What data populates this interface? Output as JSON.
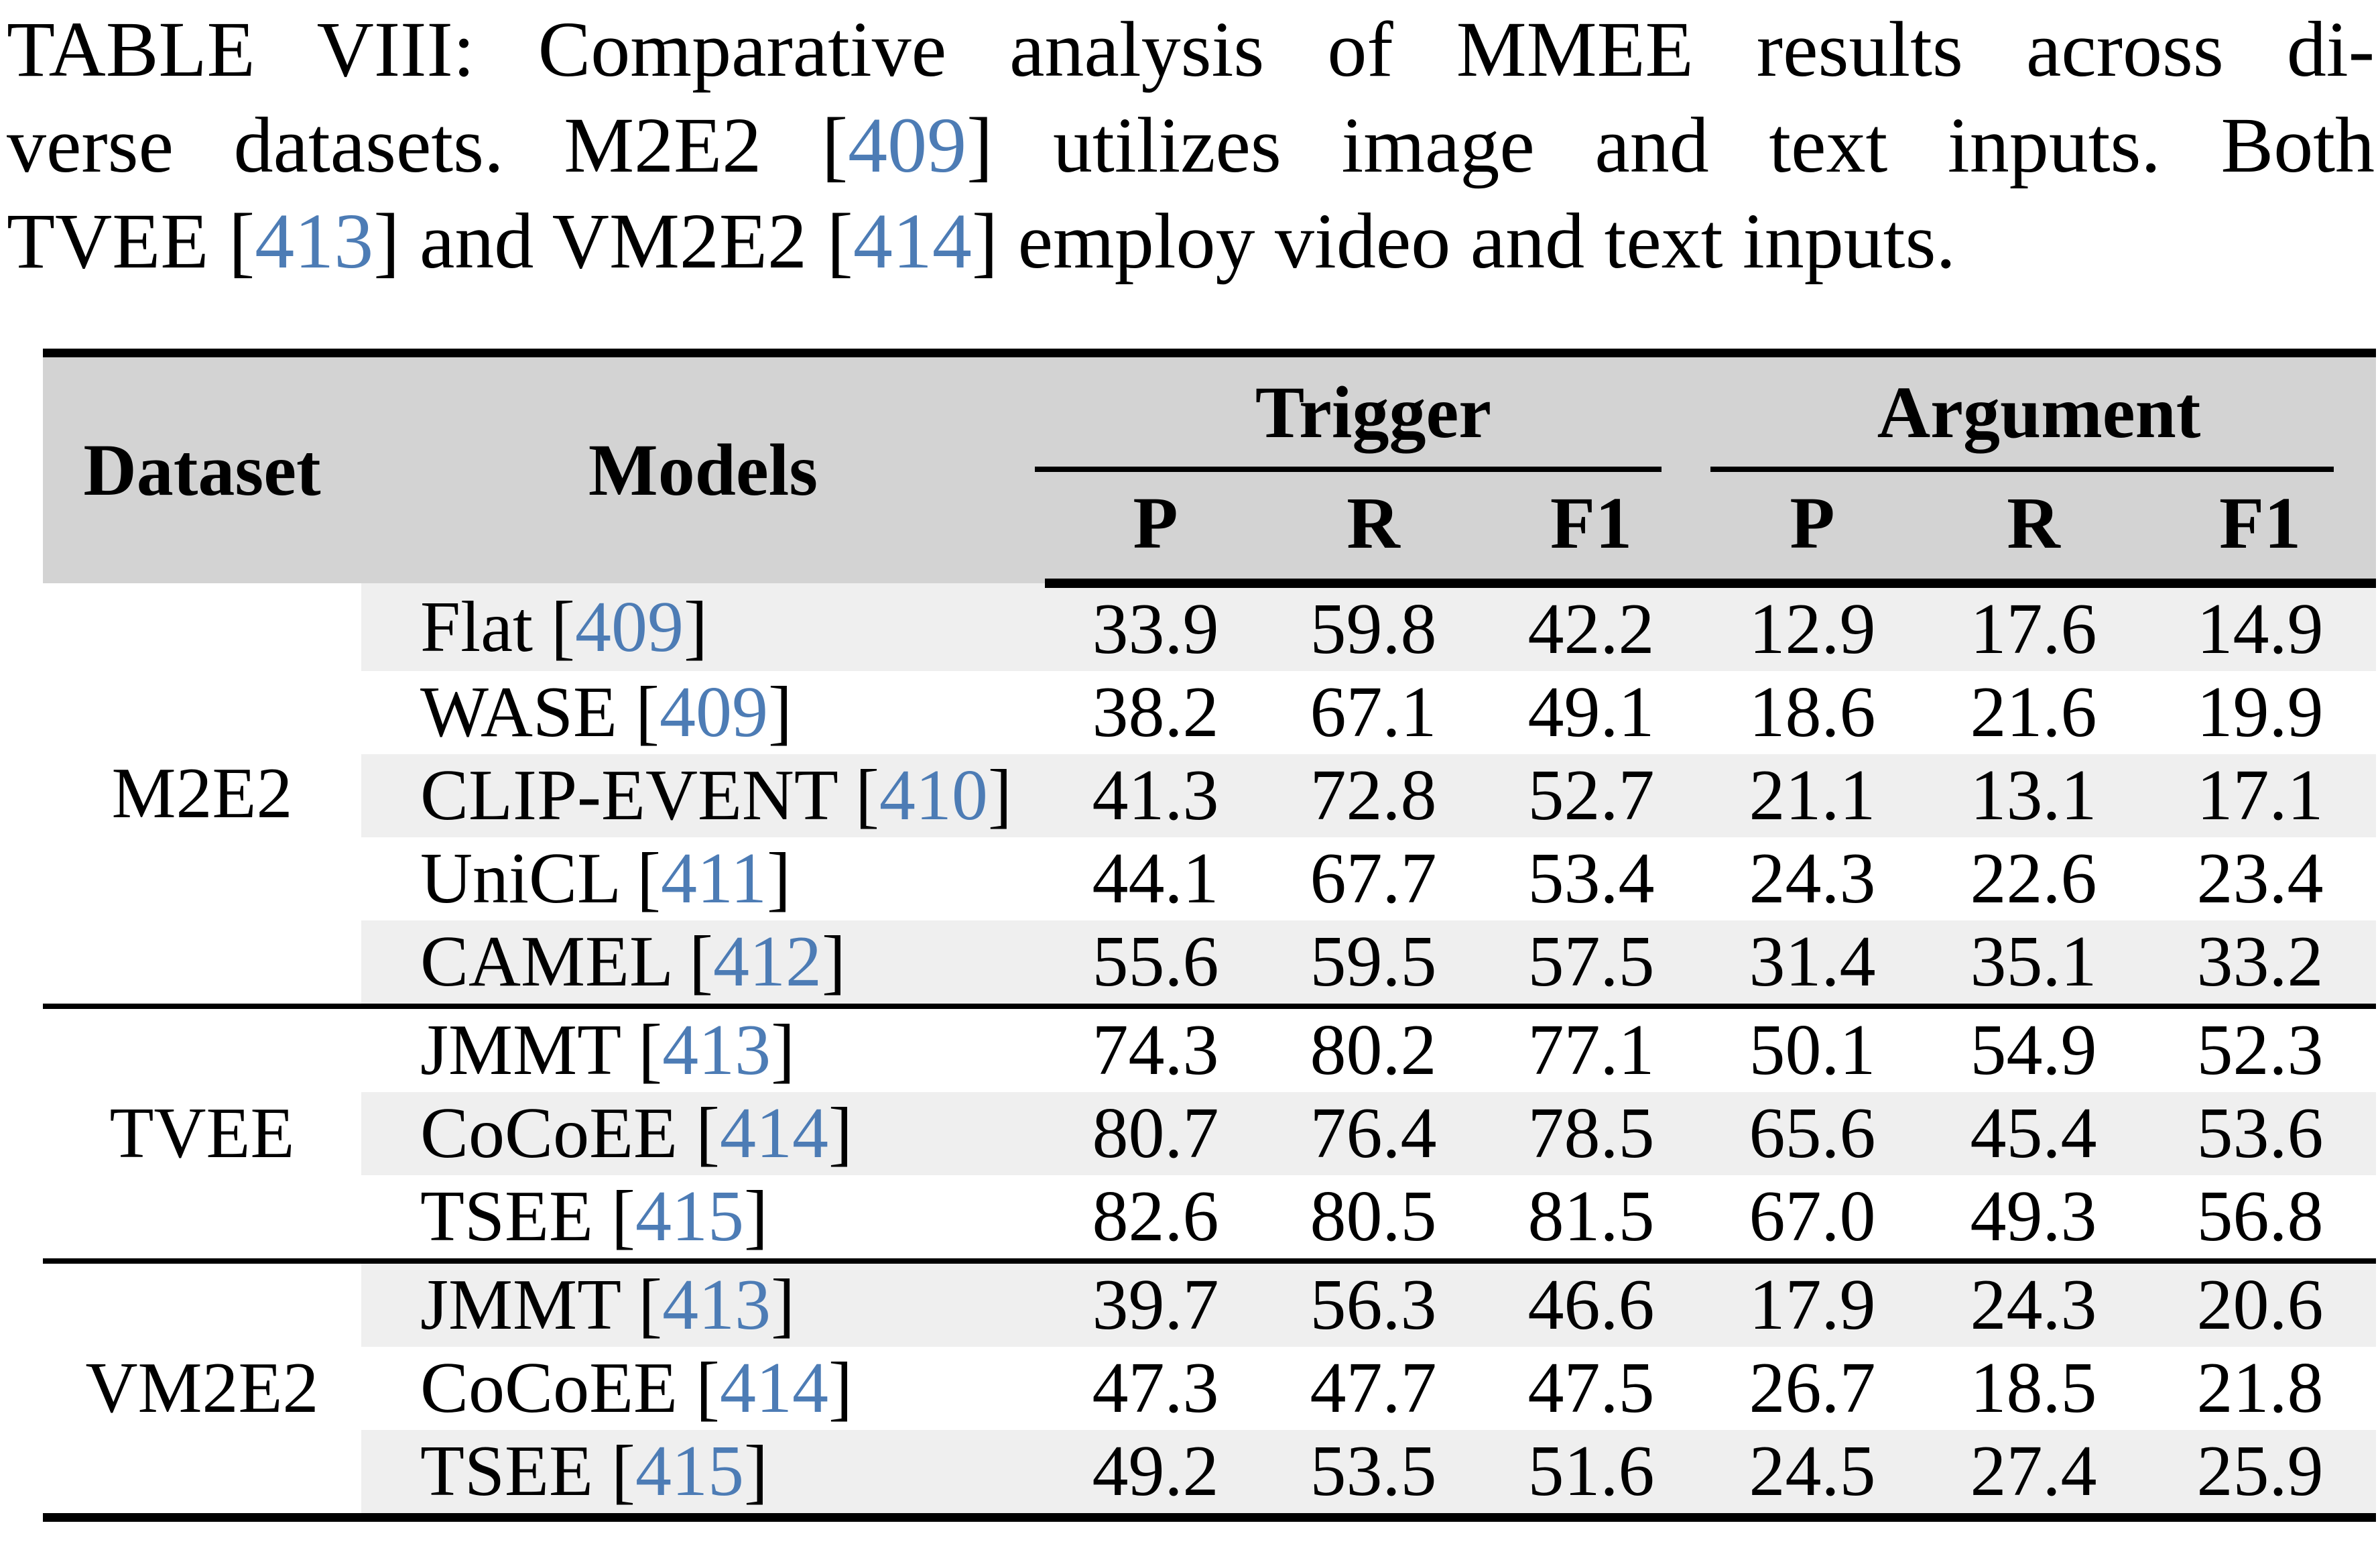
{
  "caption": {
    "line1": [
      "TABLE VIII: Comparative analysis of MMEE results across di-"
    ],
    "line2": [
      "verse datasets. M2E2 [",
      "409",
      "] utilizes image and text inputs. Both"
    ],
    "line3": [
      "TVEE [",
      "413",
      "] and VM2E2 [",
      "414",
      "] employ video and text inputs."
    ]
  },
  "colors": {
    "header_bg": "#d3d3d3",
    "stripe_bg": "#efefef",
    "ref_blue": "#4d7cb5",
    "rule_black": "#000000"
  },
  "table": {
    "header": {
      "dataset": "Dataset",
      "models": "Models",
      "groups": [
        "Trigger",
        "Argument"
      ],
      "metrics": [
        "P",
        "R",
        "F1",
        "P",
        "R",
        "F1"
      ]
    },
    "sections": [
      {
        "dataset": "M2E2",
        "rows": [
          {
            "prefix": "Flat [",
            "ref": "409",
            "suffix": "]",
            "values": [
              "33.9",
              "59.8",
              "42.2",
              "12.9",
              "17.6",
              "14.9"
            ]
          },
          {
            "prefix": "WASE [",
            "ref": "409",
            "suffix": "]",
            "values": [
              "38.2",
              "67.1",
              "49.1",
              "18.6",
              "21.6",
              "19.9"
            ]
          },
          {
            "prefix": "CLIP-EVENT [",
            "ref": "410",
            "suffix": "]",
            "values": [
              "41.3",
              "72.8",
              "52.7",
              "21.1",
              "13.1",
              "17.1"
            ]
          },
          {
            "prefix": "UniCL [",
            "ref": "411",
            "suffix": "]",
            "values": [
              "44.1",
              "67.7",
              "53.4",
              "24.3",
              "22.6",
              "23.4"
            ]
          },
          {
            "prefix": "CAMEL [",
            "ref": "412",
            "suffix": "]",
            "values": [
              "55.6",
              "59.5",
              "57.5",
              "31.4",
              "35.1",
              "33.2"
            ]
          }
        ]
      },
      {
        "dataset": "TVEE",
        "rows": [
          {
            "prefix": "JMMT [",
            "ref": "413",
            "suffix": "]",
            "values": [
              "74.3",
              "80.2",
              "77.1",
              "50.1",
              "54.9",
              "52.3"
            ]
          },
          {
            "prefix": "CoCoEE [",
            "ref": "414",
            "suffix": "]",
            "values": [
              "80.7",
              "76.4",
              "78.5",
              "65.6",
              "45.4",
              "53.6"
            ]
          },
          {
            "prefix": "TSEE [",
            "ref": "415",
            "suffix": "]",
            "values": [
              "82.6",
              "80.5",
              "81.5",
              "67.0",
              "49.3",
              "56.8"
            ]
          }
        ]
      },
      {
        "dataset": "VM2E2",
        "rows": [
          {
            "prefix": "JMMT [",
            "ref": "413",
            "suffix": "]",
            "values": [
              "39.7",
              "56.3",
              "46.6",
              "17.9",
              "24.3",
              "20.6"
            ]
          },
          {
            "prefix": "CoCoEE [",
            "ref": "414",
            "suffix": "]",
            "values": [
              "47.3",
              "47.7",
              "47.5",
              "26.7",
              "18.5",
              "21.8"
            ]
          },
          {
            "prefix": "TSEE [",
            "ref": "415",
            "suffix": "]",
            "values": [
              "49.2",
              "53.5",
              "51.6",
              "24.5",
              "27.4",
              "25.9"
            ]
          }
        ]
      }
    ]
  }
}
